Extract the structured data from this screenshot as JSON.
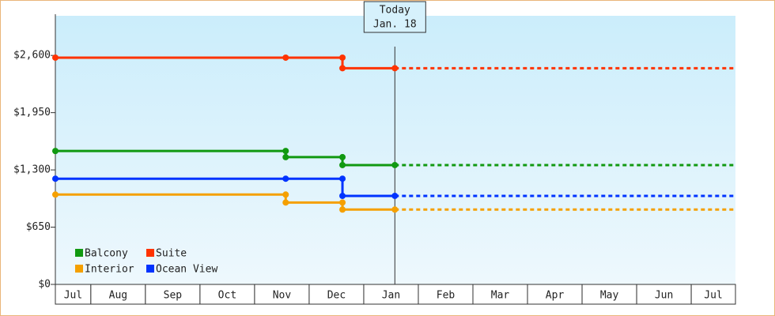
{
  "chart_data": {
    "type": "step-line",
    "categories": [
      "Jul",
      "Aug",
      "Sep",
      "Oct",
      "Nov",
      "Dec",
      "Jan",
      "Feb",
      "Mar",
      "Apr",
      "May",
      "Jun",
      "Jul"
    ],
    "xlim": [
      0.35,
      12.81
    ],
    "ylim": [
      0,
      3050
    ],
    "yticks": [
      {
        "value": 0,
        "label": "$0"
      },
      {
        "value": 650,
        "label": "$650"
      },
      {
        "value": 1300,
        "label": "$1,300"
      },
      {
        "value": 1950,
        "label": "$1,950"
      },
      {
        "value": 2600,
        "label": "$2,600"
      }
    ],
    "annotation": {
      "x": 6.57,
      "label": [
        "Today",
        "Jan. 18"
      ]
    },
    "legend_position": "lower-left",
    "series": [
      {
        "name": "Balcony",
        "color": "#119911",
        "x": [
          0.35,
          4.57,
          4.57,
          5.61,
          5.61,
          6.57
        ],
        "values": [
          1515,
          1515,
          1445,
          1445,
          1355,
          1355
        ]
      },
      {
        "name": "Suite",
        "color": "#ff3300",
        "x": [
          0.35,
          4.57,
          5.61,
          5.61,
          6.57
        ],
        "values": [
          2575,
          2575,
          2575,
          2455,
          2455
        ]
      },
      {
        "name": "Interior",
        "color": "#f5a000",
        "x": [
          0.35,
          4.57,
          4.57,
          5.61,
          5.61,
          6.57
        ],
        "values": [
          1020,
          1020,
          930,
          930,
          850,
          850
        ]
      },
      {
        "name": "Ocean View",
        "color": "#0033ff",
        "x": [
          0.35,
          4.57,
          5.61,
          5.61,
          6.57
        ],
        "values": [
          1200,
          1200,
          1200,
          1005,
          1005
        ]
      }
    ]
  }
}
